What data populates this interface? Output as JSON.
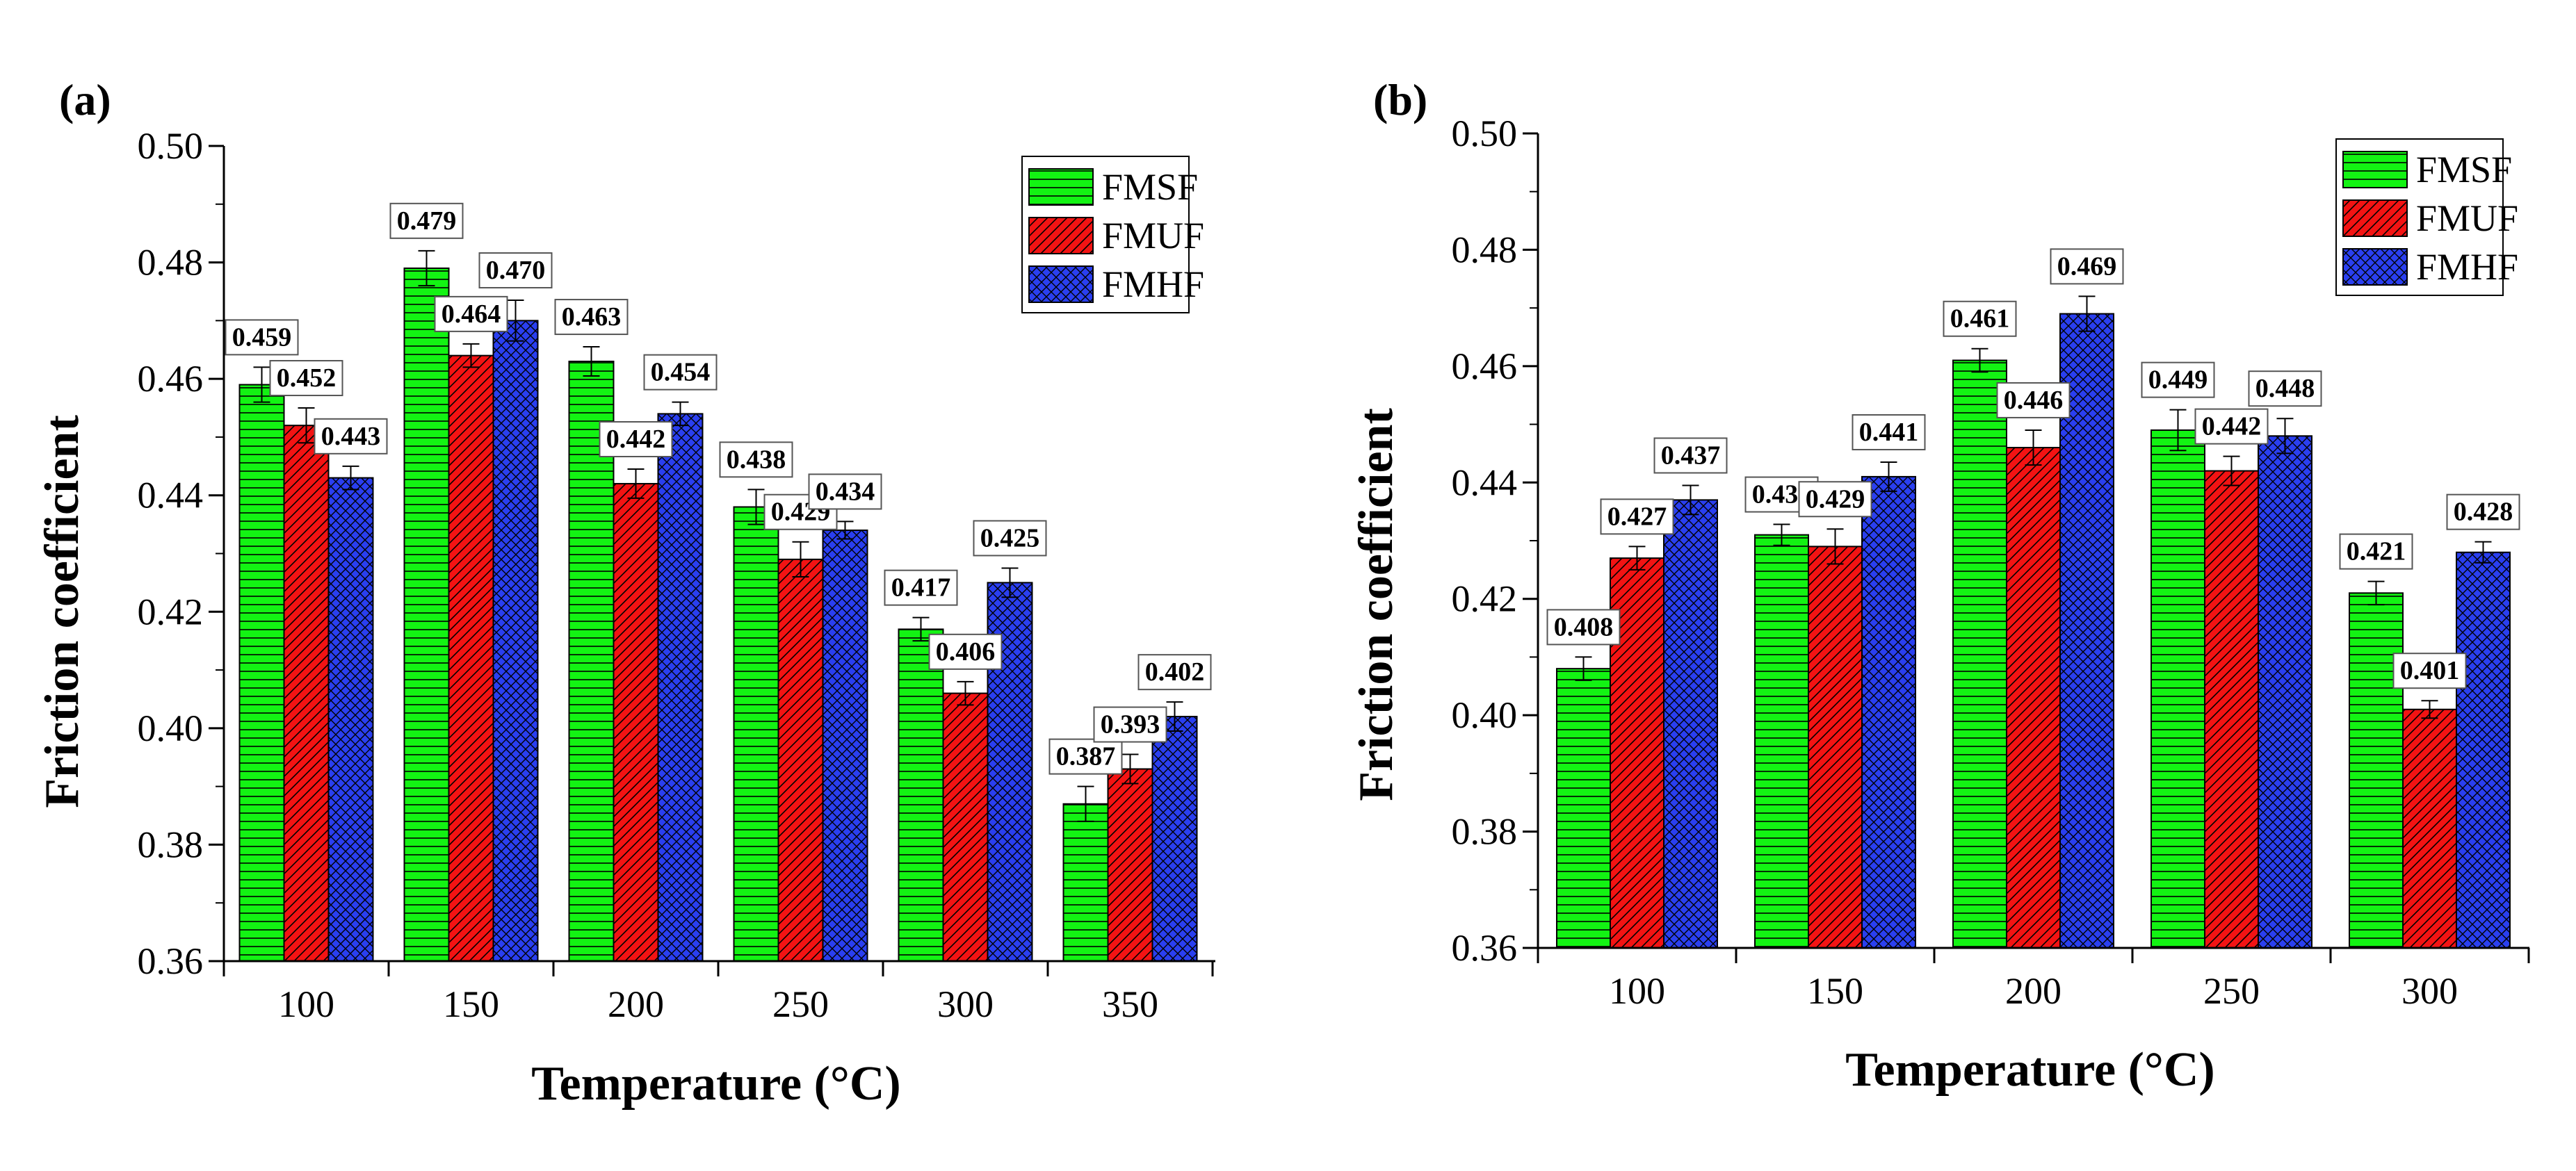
{
  "chart_data": [
    {
      "panel": "(a)",
      "type": "bar",
      "xlabel": "Temperature (°C)",
      "ylabel": "Friction coefficient",
      "ylim": [
        0.36,
        0.5
      ],
      "yticks": [
        "0.36",
        "0.38",
        "0.40",
        "0.42",
        "0.44",
        "0.46",
        "0.48",
        "0.50"
      ],
      "categories": [
        "100",
        "150",
        "200",
        "250",
        "300",
        "350"
      ],
      "series": [
        {
          "name": "FMSF",
          "values": [
            0.459,
            0.479,
            0.463,
            0.438,
            0.417,
            0.387
          ],
          "labels": [
            "0.459",
            "0.479",
            "0.463",
            "0.438",
            "0.417",
            "0.387"
          ],
          "errors": [
            0.003,
            0.003,
            0.0025,
            0.003,
            0.002,
            0.003
          ]
        },
        {
          "name": "FMUF",
          "values": [
            0.452,
            0.464,
            0.442,
            0.429,
            0.406,
            0.393
          ],
          "labels": [
            "0.452",
            "0.464",
            "0.442",
            "0.429",
            "0.406",
            "0.393"
          ],
          "errors": [
            0.003,
            0.002,
            0.0025,
            0.003,
            0.002,
            0.0025
          ]
        },
        {
          "name": "FMHF",
          "values": [
            0.443,
            0.47,
            0.454,
            0.434,
            0.425,
            0.402
          ],
          "labels": [
            "0.443",
            "0.470",
            "0.454",
            "0.434",
            "0.425",
            "0.402"
          ],
          "errors": [
            0.002,
            0.0035,
            0.002,
            0.0015,
            0.0025,
            0.0025
          ]
        }
      ],
      "legend": "top-right"
    },
    {
      "panel": "(b)",
      "type": "bar",
      "xlabel": "Temperature (°C)",
      "ylabel": "Friction coefficient",
      "ylim": [
        0.36,
        0.5
      ],
      "yticks": [
        "0.36",
        "0.38",
        "0.40",
        "0.42",
        "0.44",
        "0.46",
        "0.48",
        "0.50"
      ],
      "categories": [
        "100",
        "150",
        "200",
        "250",
        "300"
      ],
      "series": [
        {
          "name": "FMSF",
          "values": [
            0.408,
            0.431,
            0.461,
            0.449,
            0.421
          ],
          "labels": [
            "0.408",
            "0.431",
            "0.461",
            "0.449",
            "0.421"
          ],
          "errors": [
            0.002,
            0.0018,
            0.002,
            0.0035,
            0.002
          ]
        },
        {
          "name": "FMUF",
          "values": [
            0.427,
            0.429,
            0.446,
            0.442,
            0.401
          ],
          "labels": [
            "0.427",
            "0.429",
            "0.446",
            "0.442",
            "0.401"
          ],
          "errors": [
            0.002,
            0.003,
            0.003,
            0.0025,
            0.0015
          ]
        },
        {
          "name": "FMHF",
          "values": [
            0.437,
            0.441,
            0.469,
            0.448,
            0.428
          ],
          "labels": [
            "0.437",
            "0.441",
            "0.469",
            "0.448",
            "0.428"
          ],
          "errors": [
            0.0025,
            0.0025,
            0.003,
            0.003,
            0.0018
          ]
        }
      ],
      "legend": "top-right"
    }
  ],
  "colors": {
    "FMSF": "#13f313",
    "FMUF": "#f31313",
    "FMHF": "#2a3ff0"
  }
}
